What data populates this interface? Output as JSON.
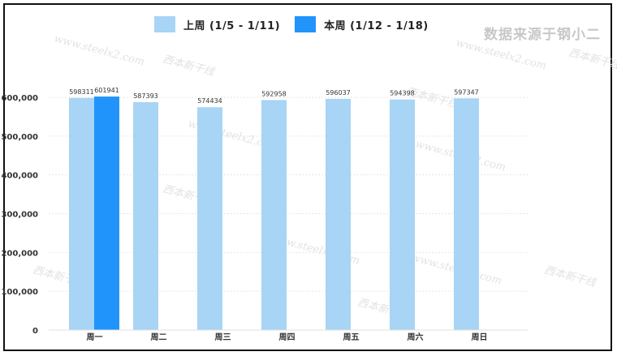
{
  "source_note": "数据来源于钢小二",
  "watermark": {
    "url": "www.steelx2.com",
    "brand": "西本新干线"
  },
  "colors": {
    "prev_week": "#a8d4f5",
    "this_week": "#2194fb"
  },
  "chart_data": {
    "type": "bar",
    "categories": [
      "周一",
      "周二",
      "周三",
      "周四",
      "周五",
      "周六",
      "周日"
    ],
    "series": [
      {
        "name": "上周 (1/5 - 1/11)",
        "values": [
          598311,
          587393,
          574434,
          592958,
          596037,
          594398,
          597347
        ]
      },
      {
        "name": "本周 (1/12 - 1/18)",
        "values": [
          601941,
          null,
          null,
          null,
          null,
          null,
          null
        ]
      }
    ],
    "y_ticks": [
      "0",
      "100,000",
      "200,000",
      "300,000",
      "400,000",
      "500,000",
      "600,000"
    ],
    "ylim": [
      0,
      600000
    ],
    "legend_position": "top",
    "grid": true
  }
}
